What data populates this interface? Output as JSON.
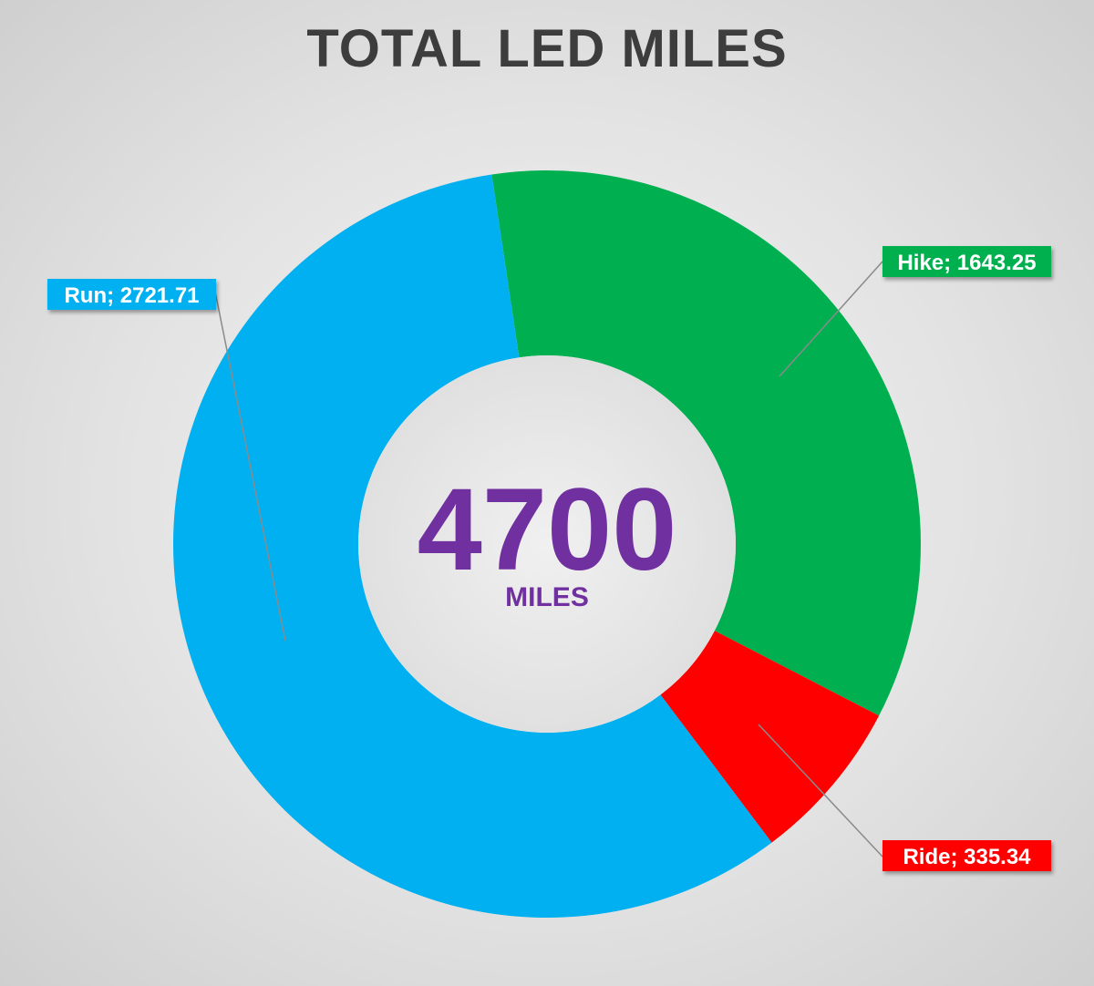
{
  "chart_data": {
    "type": "pie",
    "subtype": "donut",
    "title": "TOTAL LED MILES",
    "center_value": "4700",
    "center_unit": "MILES",
    "categories": [
      "Hike",
      "Ride",
      "Run"
    ],
    "values": [
      1643.25,
      335.34,
      2721.71
    ],
    "labels": [
      "Hike; 1643.25",
      "Ride; 335.34",
      "Run; 2721.71"
    ],
    "colors": [
      "#00b050",
      "#ff0000",
      "#00b0f0"
    ],
    "inner_color": "#e8e8e8",
    "label_placement": "outside with leader lines",
    "legend": "none"
  }
}
